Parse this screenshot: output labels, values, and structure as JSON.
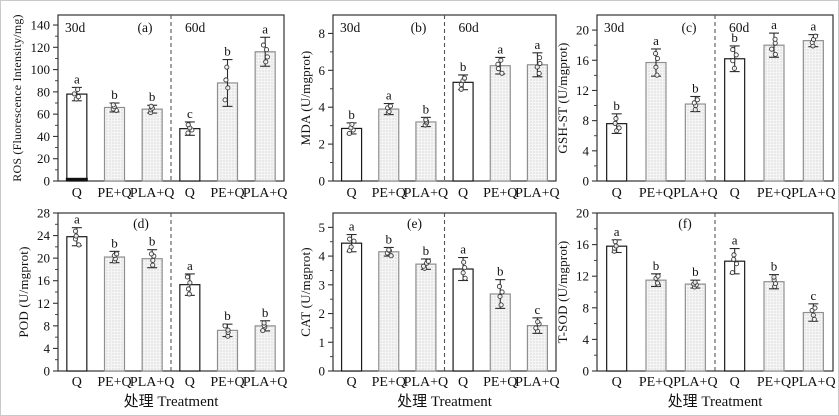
{
  "figure": {
    "xlabel": "处理 Treatment",
    "group_labels": [
      "30d",
      "60d"
    ],
    "categories": [
      "Q",
      "PE+Q",
      "PLA+Q",
      "Q",
      "PE+Q",
      "PLA+Q"
    ],
    "colors": {
      "axis": "#333333",
      "bar_plain_fill": "#ffffff",
      "bar_plain_stroke": "#1a1a1a",
      "bar_pattern_bg": "#f5f5f5",
      "bar_pattern_dot": "#cccccc",
      "bar_pattern_stroke": "#8f8f8f",
      "error_bar": "#2a2a2a",
      "text": "#111111"
    }
  },
  "chart_data": [
    {
      "type": "bar",
      "panel_id": "a",
      "panel_label": "(a)",
      "row": 0,
      "col": 0,
      "ylabel": "ROS (Fluorescence Intensity/mg)",
      "ylim": [
        0,
        149
      ],
      "yticks": [
        0,
        20,
        40,
        60,
        80,
        100,
        120,
        140
      ],
      "minor_tick_step": 10,
      "group_labels": [
        "30d",
        "60d"
      ],
      "categories": [
        "Q",
        "PE+Q",
        "PLA+Q",
        "Q",
        "PE+Q",
        "PLA+Q"
      ],
      "values": [
        78,
        66,
        64.5,
        47,
        88,
        116
      ],
      "errors": [
        6,
        4,
        3.5,
        6,
        21,
        13
      ],
      "sig_letters": [
        "a",
        "b",
        "b",
        "c",
        "b",
        "a"
      ],
      "xlabel": null,
      "artifact": {
        "bar": 0,
        "type": "black-base"
      }
    },
    {
      "type": "bar",
      "panel_id": "b",
      "panel_label": "(b)",
      "row": 0,
      "col": 1,
      "ylabel": "MDA (U/mgprot)",
      "ylim": [
        0,
        9
      ],
      "yticks": [
        0,
        2,
        4,
        6,
        8
      ],
      "minor_tick_step": 1,
      "group_labels": [
        "30d",
        "60d"
      ],
      "categories": [
        "Q",
        "PE+Q",
        "PLA+Q",
        "Q",
        "PE+Q",
        "PLA+Q"
      ],
      "values": [
        2.85,
        3.9,
        3.2,
        5.35,
        6.25,
        6.3
      ],
      "errors": [
        0.3,
        0.3,
        0.25,
        0.4,
        0.45,
        0.65
      ],
      "sig_letters": [
        "b",
        "a",
        "b",
        "b",
        "a",
        "a"
      ],
      "xlabel": null
    },
    {
      "type": "bar",
      "panel_id": "c",
      "panel_label": "(c)",
      "row": 0,
      "col": 2,
      "ylabel": "GSH-ST (U/mgprot)",
      "ylim": [
        0,
        22
      ],
      "yticks": [
        0,
        4,
        8,
        12,
        16,
        20
      ],
      "minor_tick_step": 2,
      "group_labels": [
        "30d",
        "60d"
      ],
      "categories": [
        "Q",
        "PE+Q",
        "PLA+Q",
        "Q",
        "PE+Q",
        "PLA+Q"
      ],
      "values": [
        7.6,
        15.7,
        10.2,
        16.2,
        18.0,
        18.6
      ],
      "errors": [
        1.3,
        1.8,
        1.0,
        1.7,
        1.6,
        0.8
      ],
      "sig_letters": [
        "b",
        "a",
        "b",
        "b",
        "a",
        "a"
      ],
      "xlabel": null
    },
    {
      "type": "bar",
      "panel_id": "d",
      "panel_label": "(d)",
      "row": 1,
      "col": 0,
      "ylabel": "POD (U/mgprot)",
      "ylim": [
        0,
        28
      ],
      "yticks": [
        0,
        4,
        8,
        12,
        16,
        20,
        24,
        28
      ],
      "minor_tick_step": 2,
      "group_labels": null,
      "categories": [
        "Q",
        "PE+Q",
        "PLA+Q",
        "Q",
        "PE+Q",
        "PLA+Q"
      ],
      "values": [
        23.8,
        20.2,
        19.9,
        15.3,
        7.2,
        8.0
      ],
      "errors": [
        1.6,
        1.0,
        1.6,
        1.9,
        1.1,
        0.9
      ],
      "sig_letters": [
        "a",
        "b",
        "b",
        "a",
        "b",
        "b"
      ],
      "xlabel": "处理 Treatment"
    },
    {
      "type": "bar",
      "panel_id": "e",
      "panel_label": "(e)",
      "row": 1,
      "col": 1,
      "ylabel": "CAT (U/mgprot)",
      "ylim": [
        0,
        5.5
      ],
      "yticks": [
        0,
        1,
        2,
        3,
        4,
        5
      ],
      "minor_tick_step": 0.5,
      "group_labels": null,
      "categories": [
        "Q",
        "PE+Q",
        "PLA+Q",
        "Q",
        "PE+Q",
        "PLA+Q"
      ],
      "values": [
        4.45,
        4.15,
        3.72,
        3.55,
        2.68,
        1.58
      ],
      "errors": [
        0.3,
        0.15,
        0.18,
        0.4,
        0.5,
        0.27
      ],
      "sig_letters": [
        "a",
        "b",
        "b",
        "a",
        "b",
        "c"
      ],
      "xlabel": "处理 Treatment"
    },
    {
      "type": "bar",
      "panel_id": "f",
      "panel_label": "(f)",
      "row": 1,
      "col": 2,
      "ylabel": "T-SOD (U/mgprot)",
      "ylim": [
        0,
        20
      ],
      "yticks": [
        0,
        4,
        8,
        12,
        16,
        20
      ],
      "minor_tick_step": 2,
      "group_labels": null,
      "categories": [
        "Q",
        "PE+Q",
        "PLA+Q",
        "Q",
        "PE+Q",
        "PLA+Q"
      ],
      "values": [
        15.8,
        11.5,
        11.0,
        13.9,
        11.3,
        7.4
      ],
      "errors": [
        0.8,
        0.8,
        0.5,
        1.6,
        0.9,
        1.1
      ],
      "sig_letters": [
        "a",
        "b",
        "b",
        "a",
        "b",
        "c"
      ],
      "xlabel": "处理 Treatment"
    }
  ]
}
